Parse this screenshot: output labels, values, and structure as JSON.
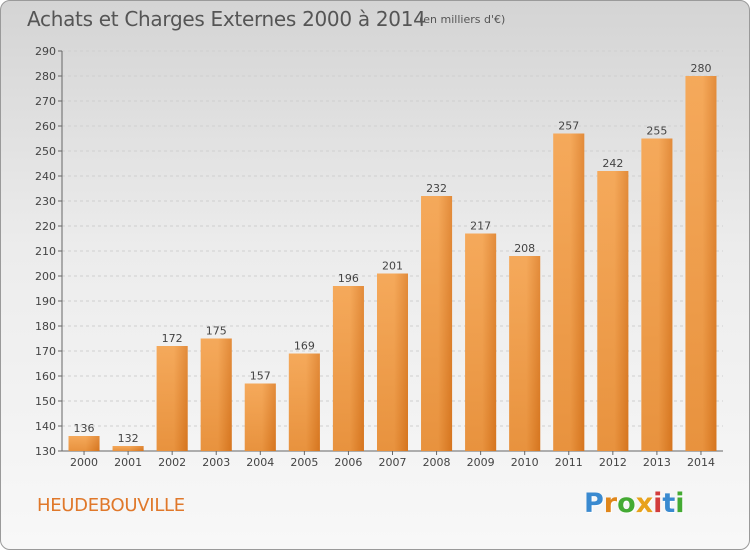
{
  "page": {
    "title": "Achats et Charges Externes 2000 à 2014",
    "unit": "(en milliers d'€)",
    "place": "HEUDEBOUVILLE"
  },
  "logo": {
    "letters": [
      "P",
      "r",
      "o",
      "x",
      "i",
      "t",
      "i"
    ],
    "colors": [
      "#3a8ad0",
      "#e0861a",
      "#44aa33",
      "#e8a21b",
      "#d23c3c",
      "#3a8ad0",
      "#44aa33"
    ]
  },
  "colors": {
    "bar_light": "#f4a655",
    "bar_dark": "#d2701b",
    "grid": "#cfcfcf",
    "axis": "#666666",
    "label": "#444444"
  },
  "chart_data": {
    "type": "bar",
    "title": "Achats et Charges Externes 2000 à 2014",
    "ylabel": "en milliers d'€",
    "xlabel": "",
    "categories": [
      "2000",
      "2001",
      "2002",
      "2003",
      "2004",
      "2005",
      "2006",
      "2007",
      "2008",
      "2009",
      "2010",
      "2011",
      "2012",
      "2013",
      "2014"
    ],
    "values": [
      136,
      132,
      172,
      175,
      157,
      169,
      196,
      201,
      232,
      217,
      208,
      257,
      242,
      255,
      280
    ],
    "ylim": [
      130,
      290
    ],
    "yticks": [
      130,
      140,
      150,
      160,
      170,
      180,
      190,
      200,
      210,
      220,
      230,
      240,
      250,
      260,
      270,
      280,
      290
    ],
    "grid": true
  }
}
